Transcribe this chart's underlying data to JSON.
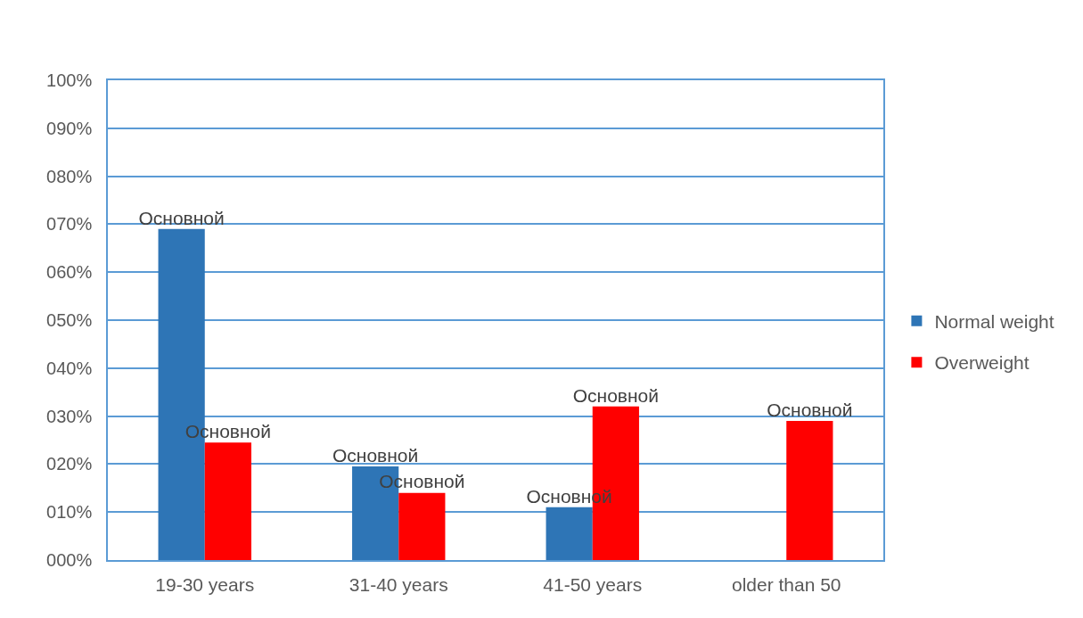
{
  "chart_data": {
    "type": "bar",
    "categories": [
      "19-30 years",
      "31-40 years",
      "41-50 years",
      "older than 50"
    ],
    "series": [
      {
        "name": "Normal weight",
        "color": "#2e75b6",
        "values": [
          69,
          19.5,
          11,
          null
        ],
        "value_labels": [
          "Основной",
          "Основной",
          "Основной",
          null
        ]
      },
      {
        "name": "Overweight",
        "color": "#ff0000",
        "values": [
          24.5,
          14,
          32,
          29
        ],
        "value_labels": [
          "Основной",
          "Основной",
          "Основной",
          "Основной"
        ]
      }
    ],
    "ylim": [
      0,
      100
    ],
    "yticks": [
      {
        "value": 0,
        "label": "000%"
      },
      {
        "value": 10,
        "label": "010%"
      },
      {
        "value": 20,
        "label": "020%"
      },
      {
        "value": 30,
        "label": "030%"
      },
      {
        "value": 40,
        "label": "040%"
      },
      {
        "value": 50,
        "label": "050%"
      },
      {
        "value": 60,
        "label": "060%"
      },
      {
        "value": 70,
        "label": "070%"
      },
      {
        "value": 80,
        "label": "080%"
      },
      {
        "value": 90,
        "label": "090%"
      },
      {
        "value": 100,
        "label": "100%"
      }
    ],
    "grid": "y",
    "legend": "right"
  }
}
